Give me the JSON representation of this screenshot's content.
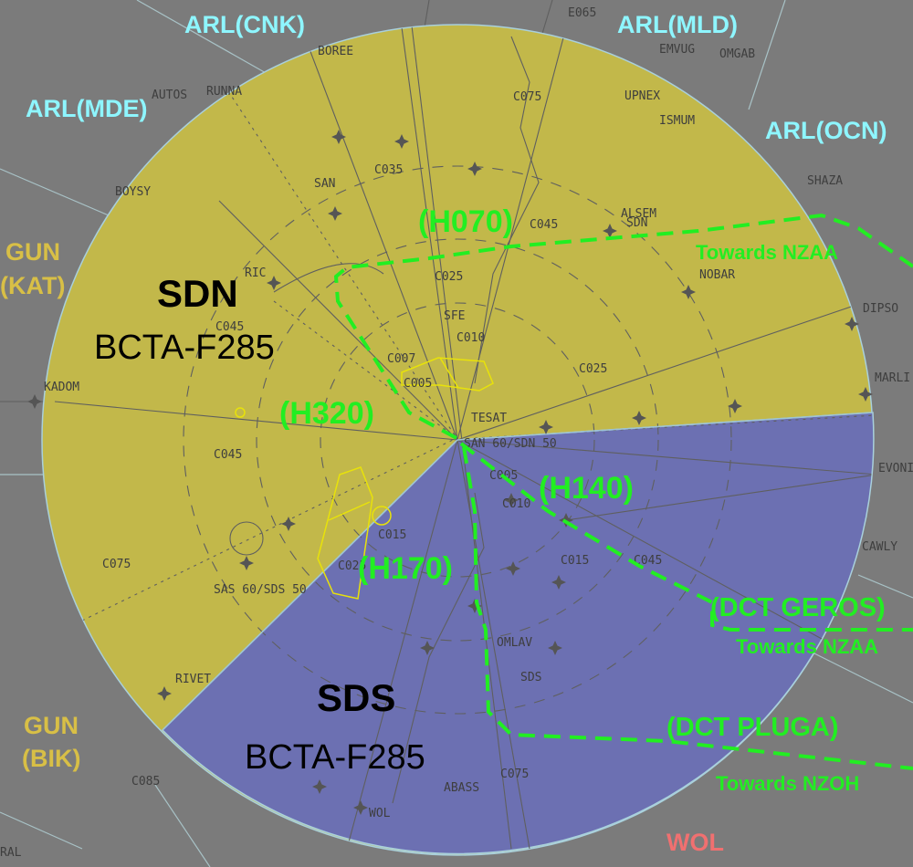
{
  "neighbors": [
    {
      "text": "ARL(CNK)",
      "color": "#8ef6ff"
    },
    {
      "text": "ARL(MLD)",
      "color": "#8ef6ff"
    },
    {
      "text": "ARL(MDE)",
      "color": "#8ef6ff"
    },
    {
      "text": "ARL(OCN)",
      "color": "#8ef6ff"
    },
    {
      "text": "GUN",
      "color": "#d8bf46"
    },
    {
      "text": "(KAT)",
      "color": "#d8bf46"
    },
    {
      "text": "GUN",
      "color": "#d8bf46"
    },
    {
      "text": "(BIK)",
      "color": "#d8bf46"
    },
    {
      "text": "WOL",
      "color": "#f07070"
    }
  ],
  "sectors": {
    "north": {
      "name": "SDN",
      "levels": "BCTA-F285",
      "fill": "#c2b84a"
    },
    "south": {
      "name": "SDS",
      "levels": "BCTA-F285",
      "fill": "#6c70b2"
    }
  },
  "routes": {
    "h070": "(H070)",
    "h320": "(H320)",
    "h140": "(H140)",
    "h170": "(H170)",
    "dct_geros": "(DCT GEROS)",
    "dct_pluga": "(DCT PLUGA)",
    "towards_nzaa_1": "Towards NZAA",
    "towards_nzaa_2": "Towards NZAA",
    "towards_nzoh": "Towards NZOH"
  },
  "fixes": [
    "E065",
    "BOREE",
    "EMVUG",
    "OMGAB",
    "AUTOS",
    "RUNNA",
    "C075",
    "UPNEX",
    "ISMUM",
    "C035",
    "SAN",
    "BOYSY",
    "C045",
    "ALSEM",
    "SDN",
    "SHAZA",
    "C025",
    "NOBAR",
    "DIPSO",
    "RIC",
    "SFE",
    "C010",
    "C007",
    "C005",
    "C025",
    "C045",
    "KADOM",
    "TESAT",
    "SAN 60/SDN 50",
    "MARLI",
    "C045",
    "C005",
    "C010",
    "EVONI",
    "C015",
    "C015",
    "C045",
    "C075",
    "CAWLY",
    "SAS 60/SDS 50",
    "C025",
    "OMLAV",
    "RIVET",
    "SDS",
    "C085",
    "ABASS",
    "C075",
    "WOL",
    "RAL"
  ]
}
